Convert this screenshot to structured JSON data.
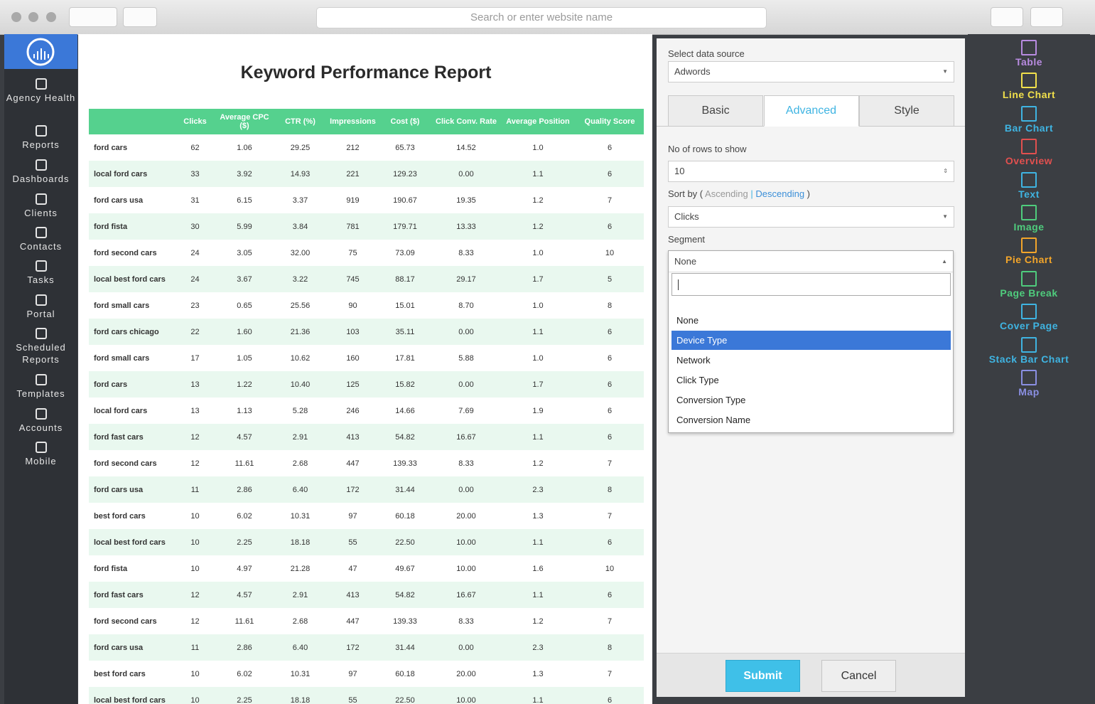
{
  "browser": {
    "search_placeholder": "Search or enter website name"
  },
  "sidebar": {
    "items": [
      "Agency Health",
      "Reports",
      "Dashboards",
      "Clients",
      "Contacts",
      "Tasks",
      "Portal",
      "Scheduled Reports",
      "Templates",
      "Accounts",
      "Mobile"
    ]
  },
  "report": {
    "title": "Keyword Performance Report",
    "table": {
      "headers": [
        "Clicks",
        "Average CPC ($)",
        "CTR (%)",
        "Impressions",
        "Cost ($)",
        "Click Conv. Rate",
        "Average Position",
        "Quality Score"
      ],
      "rows": [
        [
          "ford cars",
          "62",
          "1.06",
          "29.25",
          "212",
          "65.73",
          "14.52",
          "1.0",
          "6"
        ],
        [
          "local ford cars",
          "33",
          "3.92",
          "14.93",
          "221",
          "129.23",
          "0.00",
          "1.1",
          "6"
        ],
        [
          "ford cars usa",
          "31",
          "6.15",
          "3.37",
          "919",
          "190.67",
          "19.35",
          "1.2",
          "7"
        ],
        [
          "ford fista",
          "30",
          "5.99",
          "3.84",
          "781",
          "179.71",
          "13.33",
          "1.2",
          "6"
        ],
        [
          "ford second cars",
          "24",
          "3.05",
          "32.00",
          "75",
          "73.09",
          "8.33",
          "1.0",
          "10"
        ],
        [
          "local best ford cars",
          "24",
          "3.67",
          "3.22",
          "745",
          "88.17",
          "29.17",
          "1.7",
          "5"
        ],
        [
          "ford small cars",
          "23",
          "0.65",
          "25.56",
          "90",
          "15.01",
          "8.70",
          "1.0",
          "8"
        ],
        [
          "ford cars chicago",
          "22",
          "1.60",
          "21.36",
          "103",
          "35.11",
          "0.00",
          "1.1",
          "6"
        ],
        [
          "ford small cars",
          "17",
          "1.05",
          "10.62",
          "160",
          "17.81",
          "5.88",
          "1.0",
          "6"
        ],
        [
          "ford cars",
          "13",
          "1.22",
          "10.40",
          "125",
          "15.82",
          "0.00",
          "1.7",
          "6"
        ],
        [
          "local ford cars",
          "13",
          "1.13",
          "5.28",
          "246",
          "14.66",
          "7.69",
          "1.9",
          "6"
        ],
        [
          "ford fast cars",
          "12",
          "4.57",
          "2.91",
          "413",
          "54.82",
          "16.67",
          "1.1",
          "6"
        ],
        [
          "ford second cars",
          "12",
          "11.61",
          "2.68",
          "447",
          "139.33",
          "8.33",
          "1.2",
          "7"
        ],
        [
          "ford cars usa",
          "11",
          "2.86",
          "6.40",
          "172",
          "31.44",
          "0.00",
          "2.3",
          "8"
        ],
        [
          "best ford cars",
          "10",
          "6.02",
          "10.31",
          "97",
          "60.18",
          "20.00",
          "1.3",
          "7"
        ],
        [
          "local best ford cars",
          "10",
          "2.25",
          "18.18",
          "55",
          "22.50",
          "10.00",
          "1.1",
          "6"
        ],
        [
          "ford fista",
          "10",
          "4.97",
          "21.28",
          "47",
          "49.67",
          "10.00",
          "1.6",
          "10"
        ],
        [
          "ford fast cars",
          "12",
          "4.57",
          "2.91",
          "413",
          "54.82",
          "16.67",
          "1.1",
          "6"
        ],
        [
          "ford second cars",
          "12",
          "11.61",
          "2.68",
          "447",
          "139.33",
          "8.33",
          "1.2",
          "7"
        ],
        [
          "ford cars usa",
          "11",
          "2.86",
          "6.40",
          "172",
          "31.44",
          "0.00",
          "2.3",
          "8"
        ],
        [
          "best ford cars",
          "10",
          "6.02",
          "10.31",
          "97",
          "60.18",
          "20.00",
          "1.3",
          "7"
        ],
        [
          "local best ford cars",
          "10",
          "2.25",
          "18.18",
          "55",
          "22.50",
          "10.00",
          "1.1",
          "6"
        ]
      ]
    }
  },
  "panel": {
    "data_source_label": "Select data source",
    "data_source": "Adwords",
    "tabs": [
      "Basic",
      "Advanced",
      "Style"
    ],
    "active_tab": 1,
    "rows_label": "No of rows to show",
    "rows_value": "10",
    "sort_label": "Sort by (",
    "sort_ascending": "Ascending",
    "sort_separator": "|",
    "sort_descending": "Descending",
    "sort_close": ")",
    "sort_field": "Clicks",
    "segment_label": "Segment",
    "segment_value": "None",
    "segment_options": [
      "None",
      "Device Type",
      "Network",
      "Click Type",
      "Conversion Type",
      "Conversion Name"
    ],
    "segment_highlighted": 1,
    "submit": "Submit",
    "cancel": "Cancel"
  },
  "widgets": [
    {
      "label": "Table",
      "color": "#b88be0"
    },
    {
      "label": "Line Chart",
      "color": "#f1e04b"
    },
    {
      "label": "Bar Chart",
      "color": "#3fb4e2"
    },
    {
      "label": "Overview",
      "color": "#e2504f"
    },
    {
      "label": "Text",
      "color": "#3fb4e2"
    },
    {
      "label": "Image",
      "color": "#4fcc7d"
    },
    {
      "label": "Pie Chart",
      "color": "#f3a52a"
    },
    {
      "label": "Page Break",
      "color": "#4fcc7d"
    },
    {
      "label": "Cover Page",
      "color": "#3fb4e2"
    },
    {
      "label": "Stack Bar Chart",
      "color": "#3fb4e2"
    },
    {
      "label": "Map",
      "color": "#8a8fe2"
    }
  ]
}
